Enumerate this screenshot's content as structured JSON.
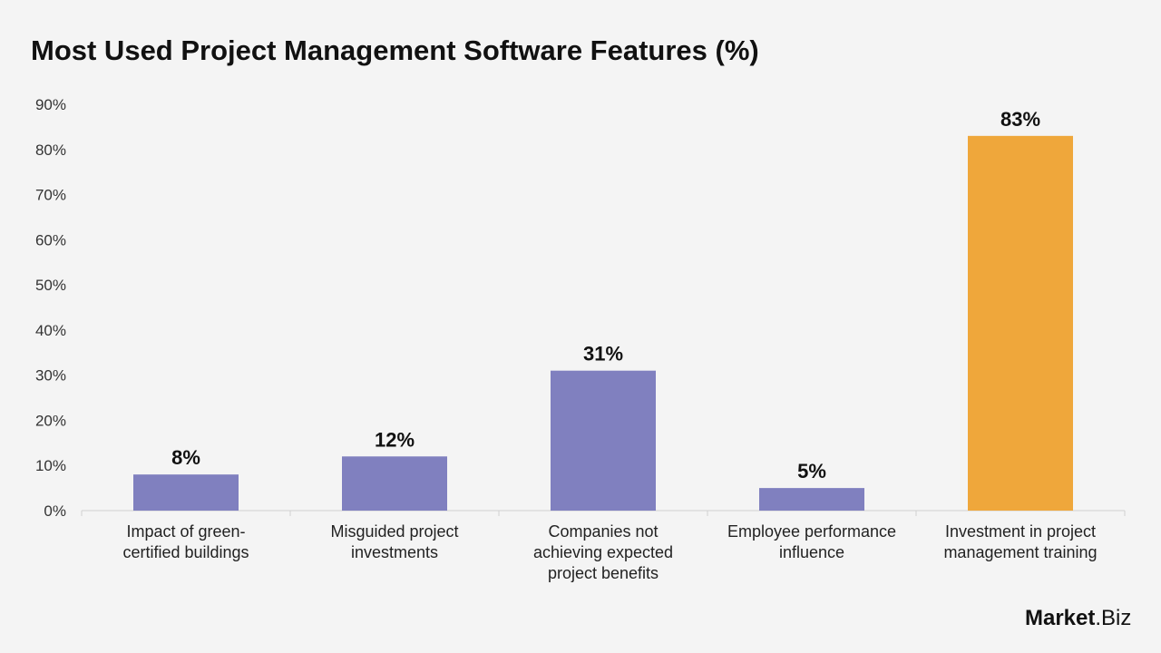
{
  "chart_data": {
    "type": "bar",
    "title": "Most Used Project Management Software Features (%)",
    "categories": [
      [
        "Impact of green-",
        "certified buildings"
      ],
      [
        "Misguided project",
        "investments"
      ],
      [
        "Companies not",
        "achieving expected",
        "project benefits"
      ],
      [
        "Employee performance",
        "influence"
      ],
      [
        "Investment in project",
        "management training"
      ]
    ],
    "values": [
      8,
      12,
      31,
      5,
      83
    ],
    "data_labels": [
      "8%",
      "12%",
      "31%",
      "5%",
      "83%"
    ],
    "colors": [
      "#8080bf",
      "#8080bf",
      "#8080bf",
      "#8080bf",
      "#efa73b"
    ],
    "ylim": [
      0,
      90
    ],
    "yticks": [
      "0%",
      "10%",
      "20%",
      "30%",
      "40%",
      "50%",
      "60%",
      "70%",
      "80%",
      "90%"
    ],
    "grid": false,
    "xlabel": "",
    "ylabel": ""
  },
  "logo": {
    "text_bold": "Market",
    "text_rest": ".Biz"
  }
}
